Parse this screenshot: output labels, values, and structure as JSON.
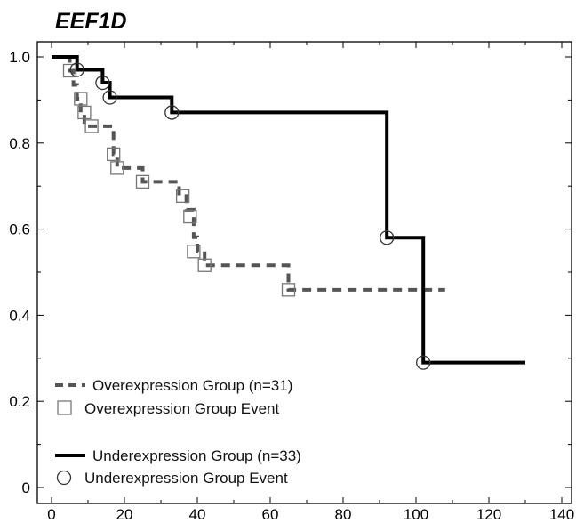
{
  "chart_data": {
    "type": "line",
    "title": "EEF1D",
    "xlabel": "",
    "ylabel": "",
    "xlim": [
      0,
      140
    ],
    "ylim": [
      0,
      1.0
    ],
    "x_ticks": [
      0,
      20,
      40,
      60,
      80,
      100,
      120,
      140
    ],
    "y_ticks": [
      0,
      0.2,
      0.4,
      0.6,
      0.8,
      1.0
    ],
    "y_tick_labels": [
      "0",
      "0.2",
      "0.4",
      "0.6",
      "0.8",
      "1.0"
    ],
    "grid": false,
    "legend": "bottom-left",
    "series": [
      {
        "name": "Overexpression Group (n=31)",
        "style": "dashed",
        "color": "#555555",
        "steps": [
          [
            0,
            1.0
          ],
          [
            5,
            0.968
          ],
          [
            6,
            0.935
          ],
          [
            7,
            0.903
          ],
          [
            8,
            0.871
          ],
          [
            9,
            0.839
          ],
          [
            10,
            0.839
          ],
          [
            17,
            0.774
          ],
          [
            18,
            0.742
          ],
          [
            25,
            0.71
          ],
          [
            35,
            0.677
          ],
          [
            37,
            0.645
          ],
          [
            39,
            0.581
          ],
          [
            40,
            0.548
          ],
          [
            42,
            0.516
          ],
          [
            65,
            0.459
          ]
        ],
        "end_x": 108,
        "event_marker": "square",
        "event_label": "Overexpression Group Event",
        "events": [
          [
            5,
            0.968
          ],
          [
            8,
            0.903
          ],
          [
            9,
            0.871
          ],
          [
            11,
            0.839
          ],
          [
            17,
            0.774
          ],
          [
            18,
            0.742
          ],
          [
            25,
            0.71
          ],
          [
            36,
            0.677
          ],
          [
            38,
            0.629
          ],
          [
            39,
            0.548
          ],
          [
            42,
            0.516
          ],
          [
            65,
            0.459
          ]
        ]
      },
      {
        "name": "Underexpression Group (n=33)",
        "style": "solid",
        "color": "#000000",
        "steps": [
          [
            0,
            1.0
          ],
          [
            7,
            0.97
          ],
          [
            14,
            0.94
          ],
          [
            16,
            0.906
          ],
          [
            33,
            0.871
          ],
          [
            92,
            0.58
          ],
          [
            102,
            0.29
          ]
        ],
        "end_x": 130,
        "event_marker": "circle",
        "event_label": "Underexpression Group Event",
        "events": [
          [
            7,
            0.97
          ],
          [
            14,
            0.94
          ],
          [
            16,
            0.906
          ],
          [
            33,
            0.871
          ],
          [
            92,
            0.58
          ],
          [
            102,
            0.29
          ]
        ]
      }
    ]
  }
}
